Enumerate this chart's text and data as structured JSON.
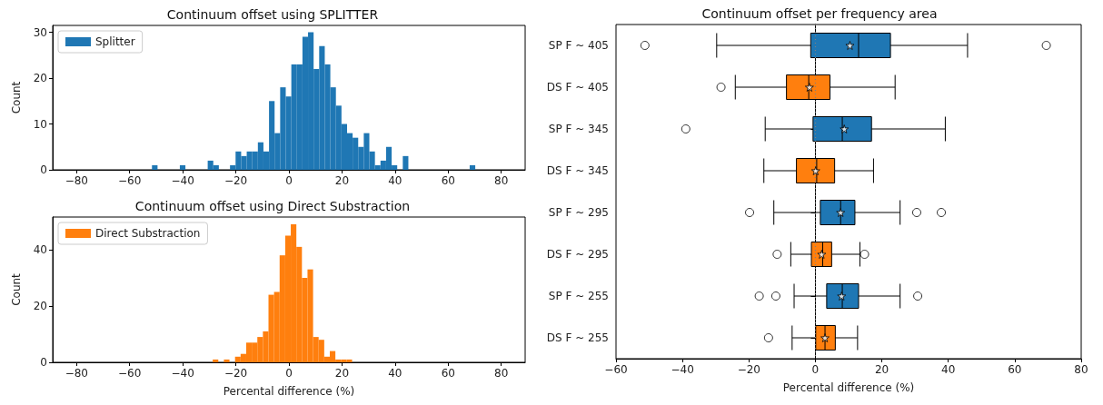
{
  "chart_data": [
    {
      "type": "histogram",
      "title": "Continuum offset using SPLITTER",
      "ylabel": "Count",
      "bins": [
        -51.6,
        -49.5,
        -47.4,
        -45.3,
        -43.2,
        -41.1,
        -39,
        -36.9,
        -34.8,
        -32.7,
        -30.6,
        -28.5,
        -26.4,
        -24.3,
        -22.2,
        -20.1,
        -18,
        -15.9,
        -13.8,
        -11.7,
        -9.6,
        -7.5,
        -5.4,
        -3.3,
        -1.2,
        0.9,
        3,
        5.1,
        7.2,
        9.3,
        11.4,
        13.5,
        15.6,
        17.7,
        19.8,
        21.9,
        24,
        26.1,
        28.2,
        30.3,
        32.4,
        34.5,
        36.6,
        38.7,
        40.8,
        42.9,
        45,
        47.1,
        49.2,
        51.3,
        53.4,
        55.5,
        57.6,
        59.7,
        61.8,
        63.9,
        66,
        68.1,
        70.2
      ],
      "series": [
        {
          "name": "Splitter",
          "color": "#1f77b4",
          "values": [
            1,
            0,
            0,
            0,
            0,
            1,
            0,
            0,
            0,
            0,
            2,
            1,
            0,
            0,
            1,
            4,
            3,
            4,
            4,
            6,
            4,
            15,
            8,
            18,
            16,
            23,
            23,
            29,
            30,
            22,
            27,
            23,
            18,
            14,
            10,
            8,
            7,
            5,
            8,
            4,
            1,
            2,
            5,
            1,
            0,
            3,
            0,
            0,
            0,
            0,
            0,
            0,
            0,
            0,
            0,
            0,
            0,
            1
          ]
        }
      ],
      "xlim": [
        -89,
        89
      ],
      "xticks": [
        -80,
        -60,
        -40,
        -20,
        0,
        20,
        40,
        60,
        80
      ],
      "ylim": [
        0,
        31.5
      ],
      "yticks": [
        0,
        10,
        20,
        30
      ],
      "legend": "top left"
    },
    {
      "type": "histogram",
      "title": "Continuum offset using Direct Substraction",
      "xlabel": "Percental difference (%)",
      "ylabel": "Count",
      "bins": [
        -28.7,
        -26.6,
        -24.5,
        -22.4,
        -20.3,
        -18.2,
        -16.1,
        -14,
        -11.9,
        -9.8,
        -7.7,
        -5.6,
        -3.5,
        -1.4,
        0.7,
        2.8,
        4.9,
        7,
        9.1,
        11.2,
        13.3,
        15.4,
        17.5,
        19.6,
        21.7,
        23.8
      ],
      "series": [
        {
          "name": "Direct Substraction",
          "color": "#ff7f0e",
          "values": [
            1,
            0,
            1,
            0,
            2,
            3,
            7,
            7,
            9,
            11,
            24,
            25,
            38,
            45,
            49,
            41,
            30,
            33,
            9,
            8,
            2,
            4,
            1,
            1,
            1
          ]
        }
      ],
      "xlim": [
        -89,
        89
      ],
      "xticks": [
        -80,
        -60,
        -40,
        -20,
        0,
        20,
        40,
        60,
        80
      ],
      "ylim": [
        0,
        51.6
      ],
      "yticks": [
        0,
        20,
        40
      ],
      "legend": "top left"
    },
    {
      "type": "box",
      "title": "Continuum offset per frequency area",
      "xlabel": "Percental difference (%)",
      "orientation": "horizontal",
      "marker": "star",
      "categories": [
        "SP F ~ 405",
        "DS F ~ 405",
        "SP F ~ 345",
        "DS F ~ 345",
        "SP F ~ 295",
        "DS F ~ 295",
        "SP F ~ 255",
        "DS F ~ 255"
      ],
      "colors": [
        "#1f77b4",
        "#ff7f0e",
        "#1f77b4",
        "#ff7f0e",
        "#1f77b4",
        "#ff7f0e",
        "#1f77b4",
        "#ff7f0e"
      ],
      "boxes": [
        {
          "low": -29.7,
          "q1": -1.4,
          "median": 13.0,
          "q3": 22.6,
          "high": 45.8,
          "mean": 10.4,
          "outliers": [
            -51.3,
            69.5
          ]
        },
        {
          "low": -24.1,
          "q1": -8.7,
          "median": -2.0,
          "q3": 4.4,
          "high": 24.0,
          "mean": -1.8,
          "outliers": [
            -28.4
          ]
        },
        {
          "low": -15.1,
          "q1": -0.7,
          "median": 8.1,
          "q3": 16.9,
          "high": 39.1,
          "mean": 8.7,
          "outliers": [
            -39.0
          ]
        },
        {
          "low": -15.5,
          "q1": -5.7,
          "median": 0.4,
          "q3": 5.8,
          "high": 17.5,
          "mean": 0.1
        },
        {
          "low": -12.5,
          "q1": 1.5,
          "median": 7.6,
          "q3": 11.9,
          "high": 25.5,
          "mean": 7.6,
          "outliers": [
            -19.8,
            30.5,
            37.9
          ]
        },
        {
          "low": -7.4,
          "q1": -1.2,
          "median": 2.2,
          "q3": 4.9,
          "high": 13.4,
          "mean": 1.9,
          "outliers": [
            -11.5,
            14.8
          ]
        },
        {
          "low": -6.4,
          "q1": 3.4,
          "median": 8.1,
          "q3": 13.0,
          "high": 25.5,
          "mean": 7.9,
          "outliers": [
            -16.9,
            -11.9,
            30.8
          ]
        },
        {
          "low": -7.0,
          "q1": 0.1,
          "median": 2.9,
          "q3": 6.0,
          "high": 12.7,
          "mean": 2.9,
          "outliers": [
            -14.1
          ]
        }
      ],
      "xlim": [
        -60,
        80
      ],
      "xticks": [
        -60,
        -40,
        -20,
        0,
        20,
        40,
        60,
        80
      ],
      "ref_lines": [
        {
          "axis": "x",
          "value": 0,
          "color": "#808080",
          "line_style": "dotted"
        }
      ]
    }
  ]
}
